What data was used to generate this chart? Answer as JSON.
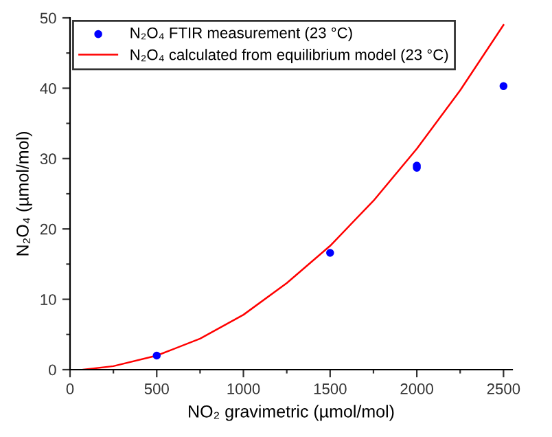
{
  "chart_data": {
    "type": "scatter",
    "xlabel": "NO₂ gravimetric (µmol/mol)",
    "ylabel": "N₂O₄ (µmol/mol)",
    "series": [
      {
        "name": "N₂O₄ FTIR measurement (23 °C)",
        "color": "#0000ff",
        "marker": "circle",
        "x": [
          500,
          1500,
          2000,
          2000,
          2500
        ],
        "values": [
          2.0,
          16.6,
          28.7,
          29.0,
          40.3
        ]
      },
      {
        "name": "N₂O₄ calculated from equilibrium model (23 °C)",
        "type": "line",
        "color": "#ff0000",
        "marker": "none",
        "x": [
          75,
          250,
          500,
          750,
          1000,
          1250,
          1500,
          1750,
          2000,
          2250,
          2500
        ],
        "values": [
          0.0,
          0.5,
          2.0,
          4.4,
          7.8,
          12.3,
          17.6,
          24.0,
          31.4,
          39.7,
          49.0
        ]
      }
    ],
    "xlim": [
      0,
      2550
    ],
    "ylim": [
      0,
      50
    ],
    "xticks": [
      0,
      {
        "value": 250,
        "label": null
      },
      500,
      {
        "value": 750,
        "label": null
      },
      1000,
      {
        "value": 1250,
        "label": null
      },
      1500,
      {
        "value": 1750,
        "label": null
      },
      2000,
      {
        "value": 2250,
        "label": null
      },
      2500
    ],
    "yticks": [
      0,
      {
        "value": 5,
        "label": null
      },
      10,
      {
        "value": 15,
        "label": null
      },
      20,
      {
        "value": 25,
        "label": null
      },
      30,
      {
        "value": 35,
        "label": null
      },
      40,
      {
        "value": 45,
        "label": null
      },
      50
    ],
    "grid": false,
    "legend": "top left"
  }
}
